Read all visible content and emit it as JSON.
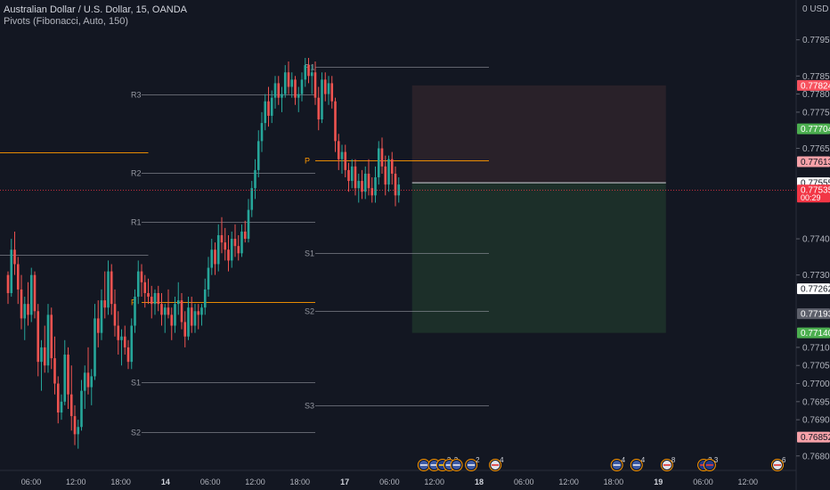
{
  "header": {
    "symbol_title": "Australian Dollar / U.S. Dollar, 15, OANDA",
    "indicator": "Pivots (Fibonacci, Auto, 150)",
    "currency": "USD"
  },
  "chart_data": {
    "type": "candlestick",
    "y_axis": {
      "min": 0.7676,
      "max": 0.7806,
      "ticks": [
        0.7795,
        0.7785,
        0.778,
        0.7775,
        0.7765,
        0.774,
        0.773,
        0.771,
        0.7705,
        0.77,
        0.7695,
        0.769,
        0.768
      ],
      "tick_labels": [
        "0.77950",
        "0.77850",
        "0.77800",
        "0.77750",
        "0.77650",
        "0.77400",
        "0.77300",
        "0.77100",
        "0.77050",
        "0.77000",
        "0.76950",
        "0.76900",
        "0.76800"
      ],
      "top_label": "0 USD",
      "price_tags": [
        {
          "label": "0.77824",
          "value": 0.77824,
          "color": "#f7525f",
          "text": "#ffffff"
        },
        {
          "label": "0.77704",
          "value": 0.77704,
          "color": "#4caf50",
          "text": "#ffffff"
        },
        {
          "label": "0.77613",
          "value": 0.77613,
          "color": "#f7a1a8",
          "text": "#131722"
        },
        {
          "label": "0.77555",
          "value": 0.77555,
          "color": "#ffffff",
          "text": "#131722"
        },
        {
          "label": "0.77535",
          "sub": "00:29",
          "value": 0.77535,
          "color": "#f23645",
          "text": "#ffffff"
        },
        {
          "label": "0.77262",
          "value": 0.77262,
          "color": "#ffffff",
          "text": "#131722"
        },
        {
          "label": "0.77193",
          "value": 0.77193,
          "color": "#5d606b",
          "text": "#ffffff"
        },
        {
          "label": "0.77140",
          "value": 0.7714,
          "color": "#4caf50",
          "text": "#ffffff"
        },
        {
          "label": "0.76852",
          "value": 0.76852,
          "color": "#f7a1a8",
          "text": "#131722"
        }
      ]
    },
    "x_axis": {
      "labels": [
        "06:00",
        "12:00",
        "18:00",
        "14",
        "06:00",
        "12:00",
        "18:00",
        "17",
        "06:00",
        "12:00",
        "18",
        "06:00",
        "12:00",
        "18:00",
        "19",
        "06:00",
        "12:00"
      ],
      "bold_labels": [
        "14",
        "17",
        "18",
        "19"
      ]
    },
    "pivots": [
      {
        "label": "R3",
        "value": 0.778,
        "start_candle": 40,
        "end_candle": 92,
        "label_pos": "left"
      },
      {
        "label": "R2",
        "value": 0.77582,
        "start_candle": 40,
        "end_candle": 92,
        "label_pos": "left"
      },
      {
        "label": "R1",
        "value": 0.77446,
        "start_candle": 40,
        "end_candle": 92,
        "label_pos": "left"
      },
      {
        "label": "P",
        "value": 0.77225,
        "start_candle": 40,
        "end_candle": 92,
        "label_pos": "left",
        "color": "#ff9800"
      },
      {
        "label": "S1",
        "value": 0.77003,
        "start_candle": 40,
        "end_candle": 92,
        "label_pos": "left"
      },
      {
        "label": "S2",
        "value": 0.76867,
        "start_candle": 40,
        "end_candle": 92,
        "label_pos": "left"
      },
      {
        "label": "R1",
        "value": 0.77875,
        "start_candle": 92,
        "end_candle": 144,
        "label_pos": "left"
      },
      {
        "label": "P",
        "value": 0.77617,
        "start_candle": 92,
        "end_candle": 144,
        "label_pos": "left",
        "color": "#ff9800"
      },
      {
        "label": "S1",
        "value": 0.7736,
        "start_candle": 92,
        "end_candle": 144,
        "label_pos": "left"
      },
      {
        "label": "S2",
        "value": 0.772,
        "start_candle": 92,
        "end_candle": 144,
        "label_pos": "left"
      },
      {
        "label": "S3",
        "value": 0.7694,
        "start_candle": 92,
        "end_candle": 144,
        "label_pos": "left"
      },
      {
        "label": "",
        "value": 0.7764,
        "start_candle": -1,
        "end_candle": 42,
        "label_pos": "none",
        "color": "#ff9800"
      },
      {
        "label": "",
        "value": 0.77355,
        "start_candle": -1,
        "end_candle": 42,
        "label_pos": "none"
      }
    ],
    "position_tool": {
      "entry": 0.77555,
      "target": 0.77824,
      "stop": 0.7714,
      "start_candle": 121,
      "end_candle": 197,
      "profit_color": "rgba(30,52,42,0.85)",
      "loss_color": "rgba(46,35,42,0.85)"
    },
    "candles": [
      [
        0.773,
        0.7731,
        0.7722,
        0.7725
      ],
      [
        0.7725,
        0.774,
        0.7724,
        0.7737
      ],
      [
        0.7737,
        0.7742,
        0.773,
        0.7733
      ],
      [
        0.7733,
        0.7735,
        0.7722,
        0.7726
      ],
      [
        0.7726,
        0.773,
        0.7715,
        0.7718
      ],
      [
        0.7718,
        0.7724,
        0.7712,
        0.7722
      ],
      [
        0.7722,
        0.7728,
        0.7716,
        0.7719
      ],
      [
        0.7719,
        0.7732,
        0.7717,
        0.773
      ],
      [
        0.773,
        0.7731,
        0.7718,
        0.772
      ],
      [
        0.772,
        0.7722,
        0.7702,
        0.7706
      ],
      [
        0.7706,
        0.7712,
        0.7698,
        0.771
      ],
      [
        0.771,
        0.7716,
        0.7703,
        0.7705
      ],
      [
        0.7705,
        0.7722,
        0.7703,
        0.7719
      ],
      [
        0.7719,
        0.7721,
        0.7704,
        0.7707
      ],
      [
        0.7707,
        0.7713,
        0.7697,
        0.77
      ],
      [
        0.77,
        0.7702,
        0.7689,
        0.7692
      ],
      [
        0.7692,
        0.7697,
        0.769,
        0.7695
      ],
      [
        0.7695,
        0.7712,
        0.7694,
        0.7708
      ],
      [
        0.7708,
        0.771,
        0.7693,
        0.7697
      ],
      [
        0.7697,
        0.7705,
        0.7687,
        0.7691
      ],
      [
        0.7691,
        0.7694,
        0.7683,
        0.7686
      ],
      [
        0.7686,
        0.769,
        0.7682,
        0.7688
      ],
      [
        0.7688,
        0.7701,
        0.7687,
        0.7698
      ],
      [
        0.7698,
        0.7705,
        0.7693,
        0.7703
      ],
      [
        0.7703,
        0.771,
        0.7697,
        0.7699
      ],
      [
        0.7699,
        0.7704,
        0.7694,
        0.7702
      ],
      [
        0.7702,
        0.7722,
        0.7701,
        0.7718
      ],
      [
        0.7718,
        0.7723,
        0.771,
        0.7714
      ],
      [
        0.7714,
        0.7726,
        0.7712,
        0.7723
      ],
      [
        0.7723,
        0.7731,
        0.7718,
        0.7721
      ],
      [
        0.7721,
        0.7734,
        0.7719,
        0.7731
      ],
      [
        0.7731,
        0.7733,
        0.7719,
        0.7722
      ],
      [
        0.7722,
        0.7726,
        0.7713,
        0.7716
      ],
      [
        0.7716,
        0.772,
        0.7708,
        0.7712
      ],
      [
        0.7712,
        0.7715,
        0.7705,
        0.7713
      ],
      [
        0.7713,
        0.7716,
        0.7708,
        0.771
      ],
      [
        0.771,
        0.7712,
        0.7704,
        0.7706
      ],
      [
        0.7706,
        0.7718,
        0.7704,
        0.7716
      ],
      [
        0.7716,
        0.7726,
        0.7714,
        0.7724
      ],
      [
        0.7724,
        0.7734,
        0.7722,
        0.7731
      ],
      [
        0.7731,
        0.7733,
        0.7724,
        0.7728
      ],
      [
        0.7728,
        0.773,
        0.7721,
        0.7725
      ],
      [
        0.7725,
        0.7729,
        0.7722,
        0.7724
      ],
      [
        0.7724,
        0.7727,
        0.7718,
        0.7722
      ],
      [
        0.7722,
        0.7726,
        0.7719,
        0.7725
      ],
      [
        0.7725,
        0.7727,
        0.772,
        0.7722
      ],
      [
        0.7722,
        0.7725,
        0.7716,
        0.7719
      ],
      [
        0.7719,
        0.7722,
        0.7714,
        0.7721
      ],
      [
        0.7721,
        0.7726,
        0.7718,
        0.7719
      ],
      [
        0.7719,
        0.7721,
        0.7712,
        0.7716
      ],
      [
        0.7716,
        0.7724,
        0.7714,
        0.7722
      ],
      [
        0.7722,
        0.7728,
        0.7719,
        0.7723
      ],
      [
        0.7723,
        0.7725,
        0.7715,
        0.7717
      ],
      [
        0.7717,
        0.772,
        0.771,
        0.7713
      ],
      [
        0.7713,
        0.7724,
        0.7712,
        0.7721
      ],
      [
        0.7721,
        0.7724,
        0.7714,
        0.7716
      ],
      [
        0.7716,
        0.7722,
        0.7714,
        0.772
      ],
      [
        0.772,
        0.7722,
        0.7715,
        0.7719
      ],
      [
        0.7719,
        0.7722,
        0.7716,
        0.7721
      ],
      [
        0.7721,
        0.7729,
        0.7719,
        0.7726
      ],
      [
        0.7726,
        0.7735,
        0.7724,
        0.7732
      ],
      [
        0.7732,
        0.774,
        0.773,
        0.7737
      ],
      [
        0.7737,
        0.7739,
        0.773,
        0.7733
      ],
      [
        0.7733,
        0.7744,
        0.7731,
        0.7741
      ],
      [
        0.7741,
        0.7746,
        0.7736,
        0.7739
      ],
      [
        0.7739,
        0.7743,
        0.7734,
        0.7737
      ],
      [
        0.7737,
        0.7741,
        0.7731,
        0.7734
      ],
      [
        0.7734,
        0.7742,
        0.7732,
        0.774
      ],
      [
        0.774,
        0.7744,
        0.7735,
        0.7738
      ],
      [
        0.7738,
        0.7741,
        0.7734,
        0.7736
      ],
      [
        0.7736,
        0.7744,
        0.7735,
        0.7742
      ],
      [
        0.7742,
        0.7745,
        0.7739,
        0.774
      ],
      [
        0.774,
        0.7751,
        0.7739,
        0.7748
      ],
      [
        0.7748,
        0.7756,
        0.7746,
        0.7754
      ],
      [
        0.7754,
        0.7762,
        0.7751,
        0.7759
      ],
      [
        0.7759,
        0.777,
        0.7757,
        0.7767
      ],
      [
        0.7767,
        0.7775,
        0.7764,
        0.7772
      ],
      [
        0.7772,
        0.778,
        0.777,
        0.7778
      ],
      [
        0.7778,
        0.7782,
        0.7771,
        0.7774
      ],
      [
        0.7774,
        0.7781,
        0.7772,
        0.7779
      ],
      [
        0.7779,
        0.7785,
        0.7776,
        0.7783
      ],
      [
        0.7783,
        0.7785,
        0.7777,
        0.7779
      ],
      [
        0.7779,
        0.7782,
        0.7775,
        0.778
      ],
      [
        0.778,
        0.7788,
        0.7779,
        0.7786
      ],
      [
        0.7786,
        0.7789,
        0.778,
        0.7782
      ],
      [
        0.7782,
        0.7786,
        0.7779,
        0.7784
      ],
      [
        0.7784,
        0.7785,
        0.7777,
        0.7779
      ],
      [
        0.7779,
        0.7782,
        0.7775,
        0.778
      ],
      [
        0.778,
        0.7786,
        0.7778,
        0.7784
      ],
      [
        0.7784,
        0.779,
        0.7782,
        0.7788
      ],
      [
        0.7788,
        0.779,
        0.7783,
        0.7785
      ],
      [
        0.7785,
        0.7788,
        0.778,
        0.7786
      ],
      [
        0.7786,
        0.7789,
        0.7777,
        0.7779
      ],
      [
        0.7779,
        0.7782,
        0.777,
        0.7773
      ],
      [
        0.7773,
        0.7786,
        0.7772,
        0.7784
      ],
      [
        0.7784,
        0.7786,
        0.7778,
        0.778
      ],
      [
        0.778,
        0.7785,
        0.7777,
        0.7783
      ],
      [
        0.7783,
        0.7785,
        0.7776,
        0.7778
      ],
      [
        0.7778,
        0.7779,
        0.7764,
        0.7767
      ],
      [
        0.7767,
        0.7769,
        0.7759,
        0.7762
      ],
      [
        0.7762,
        0.7766,
        0.7758,
        0.7764
      ],
      [
        0.7764,
        0.7766,
        0.7757,
        0.7759
      ],
      [
        0.7759,
        0.7761,
        0.7753,
        0.7756
      ],
      [
        0.7756,
        0.7762,
        0.7754,
        0.776
      ],
      [
        0.776,
        0.7762,
        0.7752,
        0.7754
      ],
      [
        0.7754,
        0.7758,
        0.775,
        0.7756
      ],
      [
        0.7756,
        0.7759,
        0.7751,
        0.7753
      ],
      [
        0.7753,
        0.776,
        0.7751,
        0.7758
      ],
      [
        0.7758,
        0.7762,
        0.7752,
        0.7754
      ],
      [
        0.7754,
        0.7757,
        0.775,
        0.7752
      ],
      [
        0.7752,
        0.776,
        0.775,
        0.7757
      ],
      [
        0.7757,
        0.7767,
        0.7755,
        0.7765
      ],
      [
        0.7765,
        0.7768,
        0.7758,
        0.776
      ],
      [
        0.776,
        0.7763,
        0.7752,
        0.7755
      ],
      [
        0.7755,
        0.7763,
        0.7753,
        0.7762
      ],
      [
        0.7762,
        0.7764,
        0.7755,
        0.7758
      ],
      [
        0.7758,
        0.776,
        0.7749,
        0.7752
      ],
      [
        0.7752,
        0.7757,
        0.775,
        0.7755
      ]
    ]
  },
  "event_badges": [
    {
      "flag": "us",
      "count": "",
      "candle": 124.5
    },
    {
      "flag": "us",
      "count": "",
      "candle": 127.6
    },
    {
      "flag": "eu",
      "count": "3",
      "candle": 130.1
    },
    {
      "flag": "us",
      "count": "3",
      "candle": 132.2
    },
    {
      "flag": "us",
      "count": "",
      "candle": 134.3
    },
    {
      "flag": "us",
      "count": "2",
      "candle": 138.7
    },
    {
      "flag": "jp",
      "count": "4",
      "candle": 145.9
    },
    {
      "flag": "us",
      "count": "4",
      "candle": 182.3
    },
    {
      "flag": "us",
      "count": "4",
      "candle": 188.2
    },
    {
      "flag": "jp",
      "count": "8",
      "candle": 197.3
    },
    {
      "flag": "au",
      "count": "2",
      "candle": 208.3
    },
    {
      "flag": "au",
      "count": "3",
      "candle": 210.1
    },
    {
      "flag": "jp",
      "count": "6",
      "candle": 230.4
    }
  ],
  "colors": {
    "background": "#131722",
    "up": "#26a69a",
    "down": "#ef5350",
    "pivot": "#9598a1",
    "pivot_p": "#ff9800",
    "current_price_line": "#f23645"
  }
}
